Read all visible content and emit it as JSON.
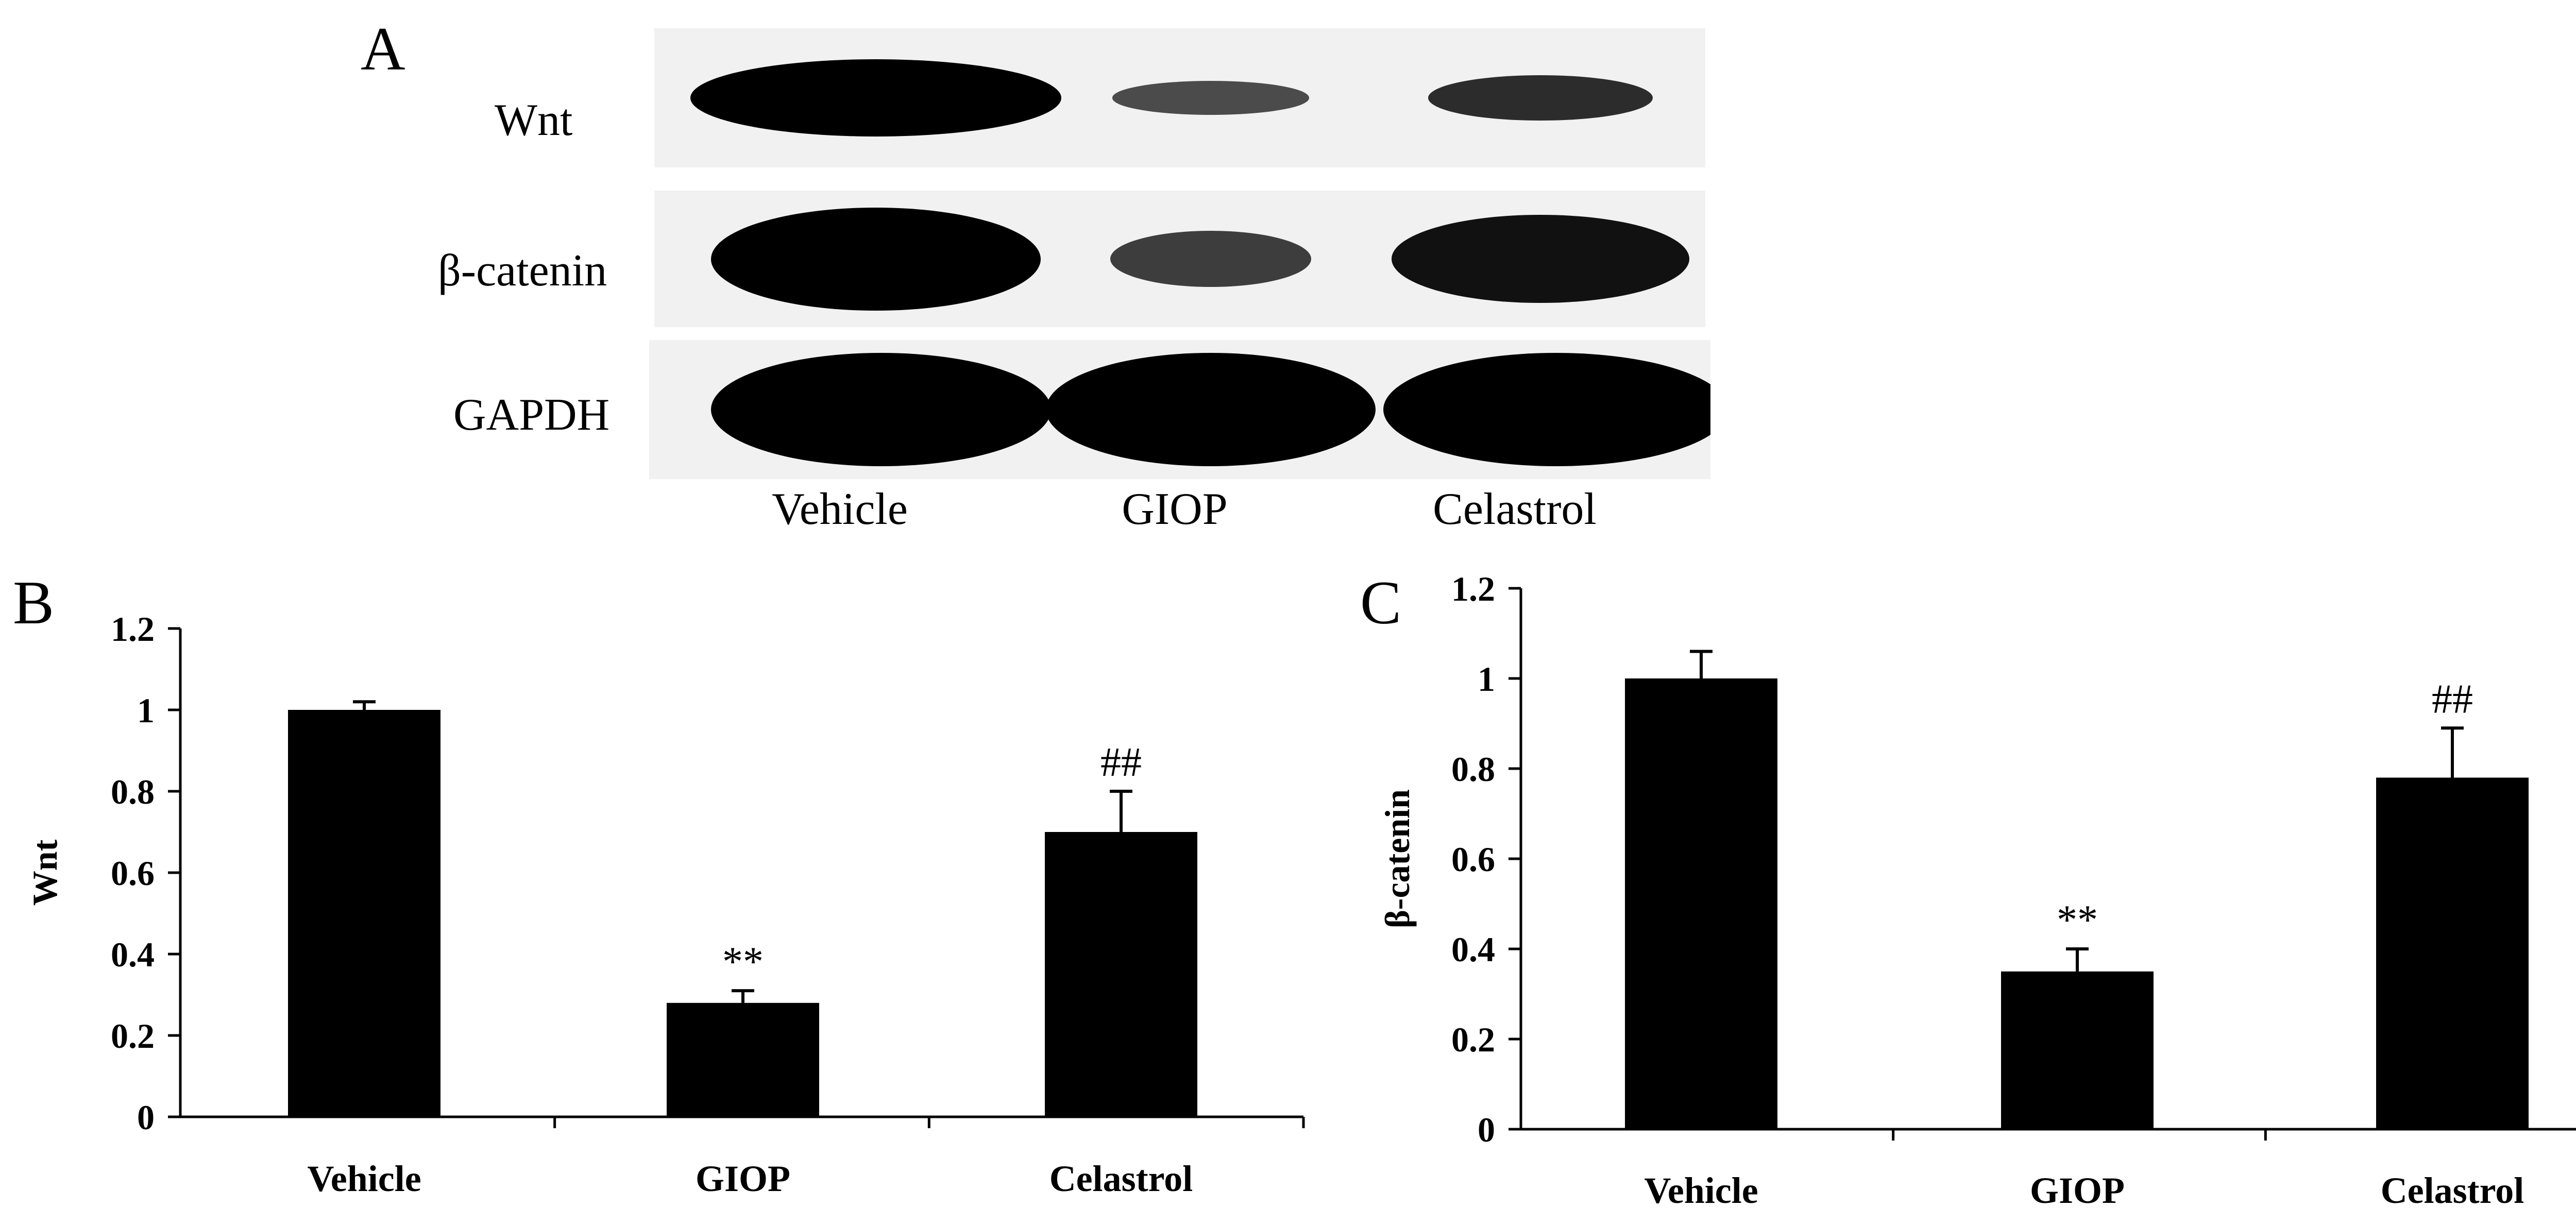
{
  "panels": {
    "a": {
      "letter": "A",
      "rows": [
        {
          "label": "Wnt",
          "intensity": [
            1.0,
            0.3,
            0.6
          ]
        },
        {
          "label": "β-catenin",
          "intensity": [
            1.0,
            0.45,
            0.85
          ]
        },
        {
          "label": "GAPDH",
          "intensity": [
            1.0,
            1.0,
            1.0
          ]
        }
      ],
      "lanes": [
        "Vehicle",
        "GIOP",
        "Celastrol"
      ]
    },
    "b": {
      "letter": "B"
    },
    "c": {
      "letter": "C"
    }
  },
  "chart_data": [
    {
      "type": "bar",
      "categories": [
        "Vehicle",
        "GIOP",
        "Celastrol"
      ],
      "values": [
        1.0,
        0.28,
        0.7
      ],
      "errors": [
        0.02,
        0.03,
        0.1
      ],
      "annotations": [
        "",
        "**",
        "##"
      ],
      "ylabel": "Wnt",
      "ylim": [
        0,
        1.2
      ],
      "yticks": [
        "0",
        "0.2",
        "0.4",
        "0.6",
        "0.8",
        "1",
        "1.2"
      ],
      "grid": false,
      "bar_color": "#000000"
    },
    {
      "type": "bar",
      "categories": [
        "Vehicle",
        "GIOP",
        "Celastrol"
      ],
      "values": [
        1.0,
        0.35,
        0.78
      ],
      "errors": [
        0.06,
        0.05,
        0.11
      ],
      "annotations": [
        "",
        "**",
        "##"
      ],
      "ylabel": "β-catenin",
      "ylim": [
        0,
        1.2
      ],
      "yticks": [
        "0",
        "0.2",
        "0.4",
        "0.6",
        "0.8",
        "1",
        "1.2"
      ],
      "grid": false,
      "bar_color": "#000000"
    }
  ]
}
